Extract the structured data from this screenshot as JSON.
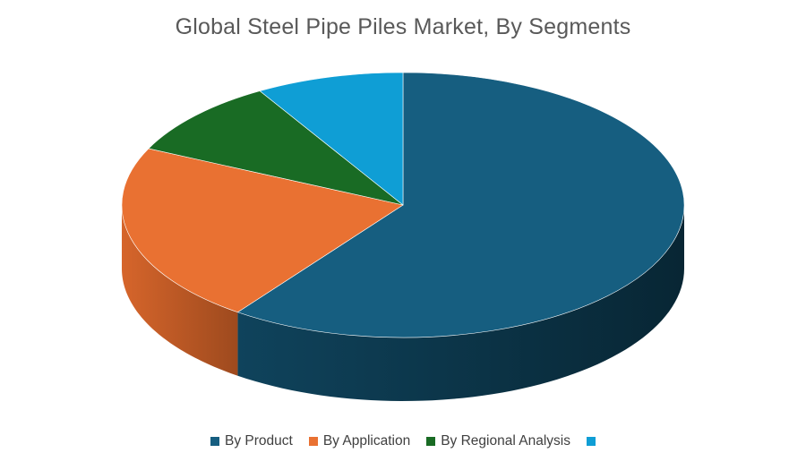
{
  "chart_data": {
    "type": "pie",
    "title": "Global Steel Pipe Piles Market, By Segments",
    "legend_position": "bottom",
    "style": "3d",
    "slices": [
      {
        "label": "By Product",
        "value": 60,
        "color": "#165E80"
      },
      {
        "label": "By Application",
        "value": 22,
        "color": "#E97132"
      },
      {
        "label": "By Regional Analysis",
        "value": 9.5,
        "color": "#196B24"
      },
      {
        "label": "",
        "value": 8.5,
        "color": "#0F9ED5"
      }
    ]
  }
}
